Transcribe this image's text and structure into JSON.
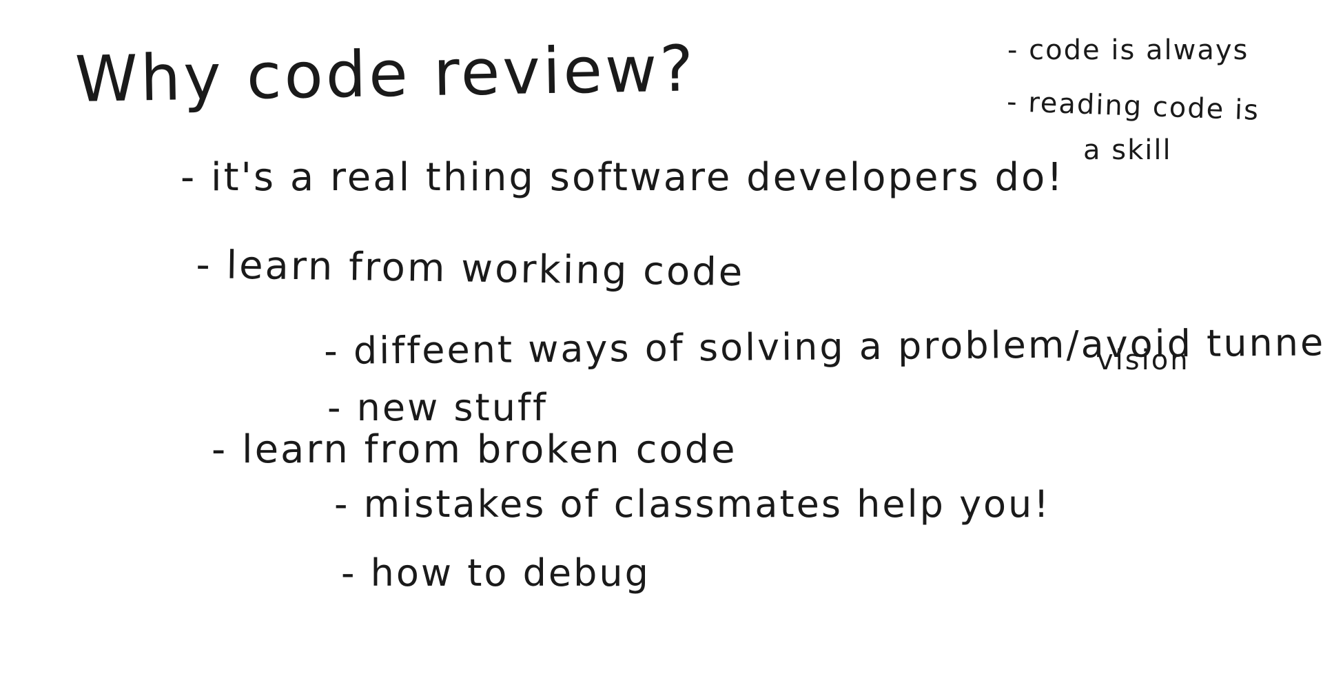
{
  "heading": "Why code review?",
  "bullets": [
    "- it's a real thing software developers do!",
    "- learn from working code",
    "- diffeent ways of solving a problem/avoid tunnel",
    "vision",
    "- new stuff",
    "- learn from broken code",
    "- mistakes of classmates help you!",
    "- how to debug"
  ],
  "side_notes": [
    "- code is always",
    "- reading code is",
    "a skill"
  ]
}
